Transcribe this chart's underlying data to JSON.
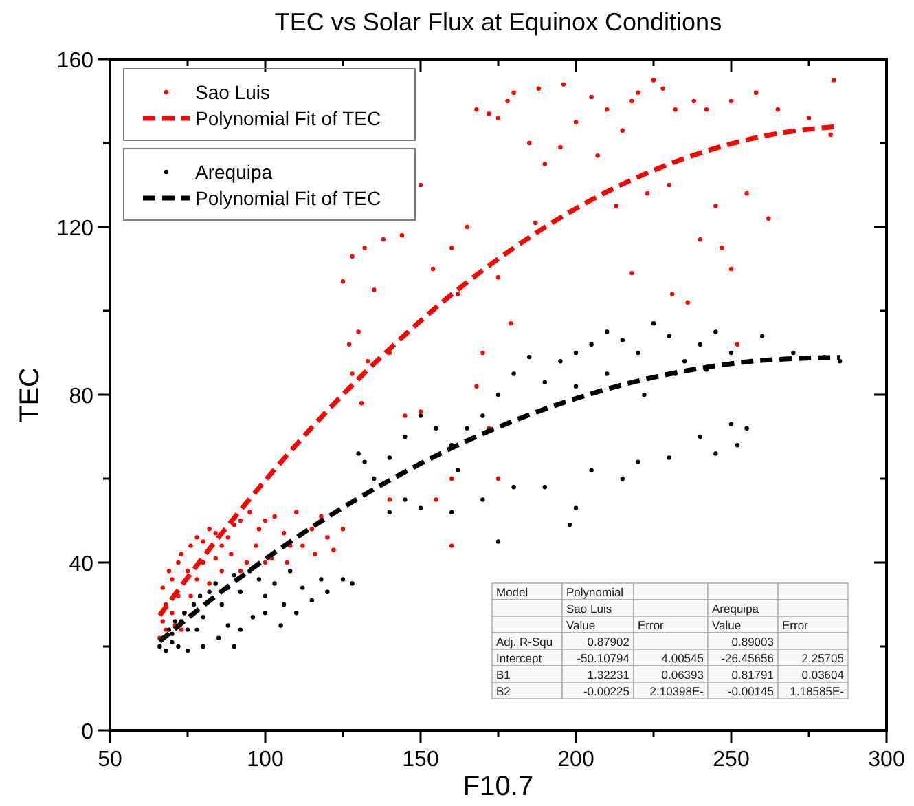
{
  "chart_data": {
    "type": "scatter",
    "title": "TEC vs Solar Flux at Equinox Conditions",
    "xlabel": "F10.7",
    "ylabel": "TEC",
    "xlim": [
      50,
      300
    ],
    "xticks": [
      50,
      {
        "value": 75,
        "label": null
      },
      100,
      {
        "value": 125,
        "label": null
      },
      150,
      {
        "value": 175,
        "label": null
      },
      200,
      {
        "value": 225,
        "label": null
      },
      250,
      {
        "value": 275,
        "label": null
      },
      300
    ],
    "ylim": [
      0,
      160
    ],
    "yticks": [
      0,
      {
        "value": 20,
        "label": null
      },
      40,
      {
        "value": 60,
        "label": null
      },
      80,
      {
        "value": 100,
        "label": null
      },
      120,
      {
        "value": 140,
        "label": null
      },
      160
    ],
    "grid": false,
    "legend": "top left",
    "series": [
      {
        "name": "Sao Luis",
        "marker": "circle",
        "color": "#ff0000",
        "x": [
          168,
          172,
          175,
          178,
          180,
          185,
          188,
          196,
          205,
          210,
          215,
          218,
          220,
          225,
          228,
          232,
          238,
          242,
          250,
          258,
          265,
          275,
          283,
          282,
          200,
          190,
          195,
          207,
          213,
          223,
          230,
          245,
          255,
          262,
          250,
          240,
          247,
          252,
          231,
          236,
          218,
          187,
          165,
          160,
          150,
          154,
          144,
          138,
          132,
          128,
          125,
          135,
          162,
          175,
          179,
          170,
          168,
          130,
          127,
          133,
          128,
          140,
          131,
          145,
          150,
          172,
          160,
          155,
          175,
          160,
          140,
          66,
          67,
          68,
          67,
          69,
          70,
          72,
          73,
          75,
          76,
          78,
          80,
          82,
          84,
          86,
          88,
          90,
          70,
          72,
          74,
          78,
          80,
          84,
          89,
          92,
          95,
          98,
          100,
          103,
          106,
          110,
          112,
          115,
          118,
          120,
          125,
          97,
          102,
          107,
          94,
          68,
          71,
          73,
          76,
          82,
          86,
          92,
          100,
          108,
          116,
          122
        ],
        "values": [
          148,
          147,
          146,
          150,
          152,
          140,
          153,
          154,
          151,
          148,
          143,
          150,
          152,
          155,
          153,
          148,
          150,
          148,
          150,
          152,
          148,
          146,
          155,
          142,
          145,
          135,
          139,
          137,
          125,
          128,
          130,
          125,
          128,
          122,
          110,
          117,
          115,
          92,
          104,
          102,
          109,
          121,
          120,
          115,
          130,
          110,
          118,
          117,
          115,
          113,
          107,
          105,
          104,
          108,
          97,
          90,
          82,
          95,
          92,
          88,
          85,
          90,
          78,
          75,
          76,
          72,
          60,
          55,
          60,
          44,
          55,
          22,
          26,
          30,
          34,
          38,
          36,
          40,
          42,
          38,
          44,
          46,
          45,
          48,
          47,
          44,
          46,
          49,
          28,
          32,
          28,
          36,
          40,
          41,
          42,
          50,
          52,
          48,
          50,
          51,
          47,
          52,
          44,
          48,
          51,
          46,
          48,
          44,
          41,
          40,
          40,
          24,
          25,
          24,
          32,
          35,
          38,
          38,
          40,
          44,
          42,
          43
        ]
      },
      {
        "name": "Polynomial Fit of TEC",
        "type": "line",
        "line_style": "dashed",
        "color": "#ff0000",
        "x": [
          66,
          80,
          100,
          120,
          140,
          160,
          180,
          200,
          220,
          240,
          260,
          285
        ],
        "values": [
          27.4,
          41.3,
          59.6,
          76.2,
          90.9,
          103.9,
          115.0,
          124.4,
          131.9,
          137.6,
          141.6,
          144.0
        ]
      },
      {
        "name": "Arequipa",
        "marker": "circle",
        "color": "#000000",
        "x": [
          66,
          67,
          68,
          69,
          70,
          71,
          72,
          74,
          75,
          77,
          79,
          80,
          82,
          84,
          86,
          88,
          90,
          92,
          95,
          98,
          100,
          103,
          106,
          108,
          110,
          112,
          115,
          118,
          120,
          125,
          128,
          85,
          88,
          92,
          96,
          100,
          105,
          90,
          80,
          75,
          70,
          73,
          78,
          130,
          132,
          140,
          145,
          150,
          155,
          160,
          165,
          170,
          175,
          180,
          185,
          190,
          195,
          200,
          205,
          210,
          215,
          220,
          225,
          230,
          235,
          240,
          245,
          250,
          260,
          270,
          280,
          285,
          200,
          210,
          222,
          232,
          242,
          250,
          255,
          240,
          230,
          220,
          215,
          205,
          200,
          190,
          180,
          170,
          160,
          150,
          145,
          140,
          135,
          162,
          175,
          198,
          245,
          252
        ],
        "values": [
          20,
          22,
          19,
          24,
          21,
          26,
          20,
          28,
          24,
          30,
          32,
          27,
          33,
          35,
          30,
          34,
          37,
          33,
          38,
          36,
          32,
          35,
          30,
          38,
          28,
          34,
          31,
          36,
          33,
          36,
          35,
          22,
          25,
          24,
          27,
          28,
          25,
          20,
          20,
          19,
          23,
          26,
          24,
          66,
          64,
          65,
          70,
          75,
          72,
          68,
          72,
          75,
          80,
          85,
          89,
          83,
          88,
          90,
          92,
          95,
          93,
          90,
          97,
          94,
          88,
          92,
          95,
          90,
          94,
          90,
          89,
          88,
          82,
          85,
          80,
          85,
          86,
          73,
          72,
          70,
          65,
          64,
          60,
          62,
          53,
          58,
          58,
          55,
          52,
          53,
          55,
          52,
          60,
          62,
          45,
          49,
          66,
          68
        ]
      },
      {
        "name": "Polynomial Fit of TEC",
        "type": "line",
        "line_style": "dashed",
        "color": "#000000",
        "x": [
          66,
          80,
          100,
          120,
          140,
          160,
          180,
          200,
          220,
          240,
          260,
          285
        ],
        "values": [
          21.2,
          29.7,
          40.8,
          50.8,
          59.6,
          67.3,
          73.8,
          79.1,
          83.3,
          86.3,
          88.2,
          88.9
        ]
      }
    ],
    "annotations": [
      "Model",
      "Polynomial",
      "Sao Luis",
      "Arequipa",
      "Value",
      "Error",
      "Value",
      "Error",
      "Adj. R-Squ",
      "0.87902",
      "0.89003",
      "Intercept",
      "-50.10794",
      "4.00545",
      "-26.45656",
      "2.25705",
      "B1",
      "1.32231",
      "0.06393",
      "0.81791",
      "0.03604",
      "B2",
      "-0.00225",
      "2.10398E-",
      "-0.00145",
      "1.18585E-"
    ]
  }
}
